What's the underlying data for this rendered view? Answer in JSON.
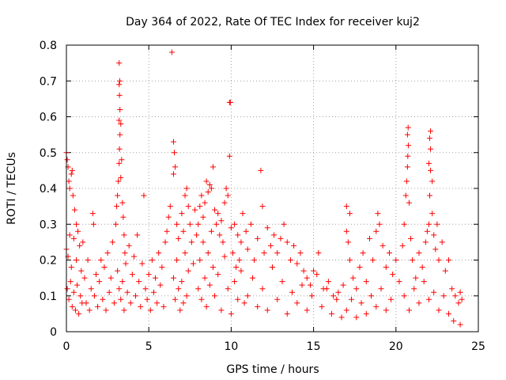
{
  "chart_data": {
    "type": "scatter",
    "title": "Day 364 of 2022, Rate Of TEC Index for receiver kuj2",
    "xlabel": "GPS time / hours",
    "ylabel": "ROTI / TECUs",
    "xlim": [
      0,
      25
    ],
    "ylim": [
      0,
      0.8
    ],
    "grid": true,
    "marker": "+",
    "color": "#ff0000",
    "x_ticks": [
      0,
      5,
      10,
      15,
      20,
      25
    ],
    "x_tick_labels": [
      "0",
      "5",
      "10",
      "15",
      "20",
      "25"
    ],
    "y_ticks": [
      0,
      0.1,
      0.2,
      0.3,
      0.4,
      0.5,
      0.6,
      0.7,
      0.8
    ],
    "y_tick_labels": [
      "0",
      "0.1",
      "0.2",
      "0.3",
      "0.4",
      "0.5",
      "0.6",
      "0.7",
      "0.8"
    ],
    "series": [
      {
        "name": "ROTI",
        "points": [
          [
            0.0,
            0.5
          ],
          [
            0.05,
            0.48
          ],
          [
            0.1,
            0.46
          ],
          [
            0.15,
            0.42
          ],
          [
            0.2,
            0.4
          ],
          [
            0.3,
            0.44
          ],
          [
            0.35,
            0.45
          ],
          [
            0.4,
            0.38
          ],
          [
            0.5,
            0.34
          ],
          [
            0.6,
            0.3
          ],
          [
            0.0,
            0.23
          ],
          [
            0.1,
            0.21
          ],
          [
            0.2,
            0.27
          ],
          [
            0.3,
            0.18
          ],
          [
            0.45,
            0.26
          ],
          [
            0.6,
            0.2
          ],
          [
            0.7,
            0.28
          ],
          [
            0.8,
            0.24
          ],
          [
            0.9,
            0.17
          ],
          [
            1.0,
            0.25
          ],
          [
            0.05,
            0.12
          ],
          [
            0.15,
            0.09
          ],
          [
            0.25,
            0.14
          ],
          [
            0.35,
            0.07
          ],
          [
            0.45,
            0.11
          ],
          [
            0.55,
            0.06
          ],
          [
            0.65,
            0.13
          ],
          [
            0.75,
            0.05
          ],
          [
            0.85,
            0.1
          ],
          [
            0.95,
            0.08
          ],
          [
            1.1,
            0.15
          ],
          [
            1.2,
            0.08
          ],
          [
            1.3,
            0.2
          ],
          [
            1.4,
            0.06
          ],
          [
            1.5,
            0.12
          ],
          [
            1.6,
            0.33
          ],
          [
            1.65,
            0.3
          ],
          [
            1.7,
            0.1
          ],
          [
            1.8,
            0.16
          ],
          [
            1.9,
            0.07
          ],
          [
            2.0,
            0.14
          ],
          [
            2.1,
            0.2
          ],
          [
            2.2,
            0.09
          ],
          [
            2.3,
            0.18
          ],
          [
            2.4,
            0.06
          ],
          [
            2.5,
            0.22
          ],
          [
            2.6,
            0.11
          ],
          [
            2.7,
            0.15
          ],
          [
            2.8,
            0.25
          ],
          [
            2.9,
            0.08
          ],
          [
            3.0,
            0.3
          ],
          [
            3.05,
            0.35
          ],
          [
            3.1,
            0.38
          ],
          [
            3.15,
            0.42
          ],
          [
            3.2,
            0.47
          ],
          [
            3.22,
            0.51
          ],
          [
            3.25,
            0.55
          ],
          [
            3.2,
            0.59
          ],
          [
            3.25,
            0.62
          ],
          [
            3.22,
            0.66
          ],
          [
            3.2,
            0.69
          ],
          [
            3.24,
            0.7
          ],
          [
            3.2,
            0.75
          ],
          [
            3.3,
            0.58
          ],
          [
            3.35,
            0.48
          ],
          [
            3.3,
            0.43
          ],
          [
            3.4,
            0.36
          ],
          [
            3.45,
            0.32
          ],
          [
            3.5,
            0.27
          ],
          [
            3.55,
            0.22
          ],
          [
            3.1,
            0.17
          ],
          [
            3.2,
            0.12
          ],
          [
            3.3,
            0.09
          ],
          [
            3.4,
            0.14
          ],
          [
            3.5,
            0.06
          ],
          [
            3.6,
            0.19
          ],
          [
            3.7,
            0.11
          ],
          [
            3.8,
            0.24
          ],
          [
            3.9,
            0.08
          ],
          [
            4.0,
            0.16
          ],
          [
            4.1,
            0.21
          ],
          [
            4.2,
            0.1
          ],
          [
            4.3,
            0.27
          ],
          [
            4.4,
            0.14
          ],
          [
            4.5,
            0.07
          ],
          [
            4.6,
            0.19
          ],
          [
            4.7,
            0.38
          ],
          [
            4.8,
            0.12
          ],
          [
            4.9,
            0.09
          ],
          [
            5.0,
            0.16
          ],
          [
            5.1,
            0.06
          ],
          [
            5.2,
            0.2
          ],
          [
            5.3,
            0.11
          ],
          [
            5.4,
            0.15
          ],
          [
            5.5,
            0.08
          ],
          [
            5.6,
            0.22
          ],
          [
            5.7,
            0.13
          ],
          [
            5.8,
            0.18
          ],
          [
            5.9,
            0.07
          ],
          [
            6.0,
            0.25
          ],
          [
            6.1,
            0.28
          ],
          [
            6.2,
            0.32
          ],
          [
            6.3,
            0.35
          ],
          [
            6.4,
            0.78
          ],
          [
            6.5,
            0.53
          ],
          [
            6.55,
            0.5
          ],
          [
            6.5,
            0.44
          ],
          [
            6.6,
            0.46
          ],
          [
            6.7,
            0.3
          ],
          [
            6.8,
            0.26
          ],
          [
            6.5,
            0.15
          ],
          [
            6.6,
            0.09
          ],
          [
            6.7,
            0.2
          ],
          [
            6.8,
            0.12
          ],
          [
            6.9,
            0.06
          ],
          [
            7.0,
            0.33
          ],
          [
            7.1,
            0.28
          ],
          [
            7.2,
            0.38
          ],
          [
            7.3,
            0.4
          ],
          [
            7.4,
            0.35
          ],
          [
            7.0,
            0.14
          ],
          [
            7.1,
            0.08
          ],
          [
            7.2,
            0.22
          ],
          [
            7.3,
            0.1
          ],
          [
            7.4,
            0.17
          ],
          [
            7.5,
            0.3
          ],
          [
            7.6,
            0.25
          ],
          [
            7.7,
            0.19
          ],
          [
            7.8,
            0.34
          ],
          [
            7.9,
            0.27
          ],
          [
            8.0,
            0.3
          ],
          [
            8.1,
            0.35
          ],
          [
            8.2,
            0.38
          ],
          [
            8.3,
            0.32
          ],
          [
            8.4,
            0.36
          ],
          [
            8.5,
            0.42
          ],
          [
            8.6,
            0.39
          ],
          [
            8.7,
            0.41
          ],
          [
            8.8,
            0.4
          ],
          [
            8.9,
            0.46
          ],
          [
            8.0,
            0.12
          ],
          [
            8.1,
            0.2
          ],
          [
            8.2,
            0.09
          ],
          [
            8.3,
            0.25
          ],
          [
            8.4,
            0.15
          ],
          [
            8.5,
            0.07
          ],
          [
            8.6,
            0.22
          ],
          [
            8.7,
            0.13
          ],
          [
            8.8,
            0.28
          ],
          [
            8.9,
            0.18
          ],
          [
            9.0,
            0.34
          ],
          [
            9.1,
            0.3
          ],
          [
            9.2,
            0.33
          ],
          [
            9.3,
            0.27
          ],
          [
            9.4,
            0.31
          ],
          [
            9.5,
            0.25
          ],
          [
            9.6,
            0.36
          ],
          [
            9.7,
            0.4
          ],
          [
            9.8,
            0.38
          ],
          [
            9.9,
            0.64
          ],
          [
            9.95,
            0.64
          ],
          [
            9.9,
            0.49
          ],
          [
            10.0,
            0.29
          ],
          [
            10.1,
            0.22
          ],
          [
            10.2,
            0.3
          ],
          [
            10.3,
            0.18
          ],
          [
            10.4,
            0.27
          ],
          [
            10.5,
            0.2
          ],
          [
            10.6,
            0.25
          ],
          [
            10.7,
            0.33
          ],
          [
            9.0,
            0.1
          ],
          [
            9.2,
            0.16
          ],
          [
            9.4,
            0.06
          ],
          [
            9.6,
            0.21
          ],
          [
            9.8,
            0.12
          ],
          [
            10.0,
            0.05
          ],
          [
            10.2,
            0.14
          ],
          [
            10.4,
            0.09
          ],
          [
            10.6,
            0.17
          ],
          [
            10.8,
            0.08
          ],
          [
            10.9,
            0.28
          ],
          [
            11.0,
            0.23
          ],
          [
            11.2,
            0.3
          ],
          [
            11.4,
            0.2
          ],
          [
            11.6,
            0.26
          ],
          [
            11.8,
            0.45
          ],
          [
            11.9,
            0.35
          ],
          [
            12.0,
            0.22
          ],
          [
            12.2,
            0.29
          ],
          [
            12.4,
            0.24
          ],
          [
            11.0,
            0.1
          ],
          [
            11.3,
            0.15
          ],
          [
            11.6,
            0.07
          ],
          [
            11.9,
            0.12
          ],
          [
            12.2,
            0.06
          ],
          [
            12.5,
            0.18
          ],
          [
            12.8,
            0.09
          ],
          [
            13.1,
            0.14
          ],
          [
            13.4,
            0.05
          ],
          [
            13.7,
            0.11
          ],
          [
            12.6,
            0.27
          ],
          [
            12.8,
            0.22
          ],
          [
            13.0,
            0.26
          ],
          [
            13.2,
            0.3
          ],
          [
            13.4,
            0.25
          ],
          [
            13.6,
            0.2
          ],
          [
            13.8,
            0.24
          ],
          [
            14.0,
            0.19
          ],
          [
            14.2,
            0.22
          ],
          [
            14.4,
            0.17
          ],
          [
            14.0,
            0.08
          ],
          [
            14.3,
            0.13
          ],
          [
            14.6,
            0.06
          ],
          [
            14.9,
            0.1
          ],
          [
            15.2,
            0.16
          ],
          [
            15.5,
            0.07
          ],
          [
            15.8,
            0.12
          ],
          [
            16.1,
            0.05
          ],
          [
            16.4,
            0.09
          ],
          [
            16.7,
            0.04
          ],
          [
            14.6,
            0.15
          ],
          [
            14.8,
            0.13
          ],
          [
            15.0,
            0.17
          ],
          [
            15.3,
            0.22
          ],
          [
            15.6,
            0.12
          ],
          [
            15.9,
            0.14
          ],
          [
            16.2,
            0.1
          ],
          [
            16.5,
            0.11
          ],
          [
            16.8,
            0.13
          ],
          [
            17.0,
            0.28
          ],
          [
            17.0,
            0.35
          ],
          [
            17.2,
            0.33
          ],
          [
            17.1,
            0.25
          ],
          [
            17.2,
            0.2
          ],
          [
            17.4,
            0.15
          ],
          [
            17.6,
            0.12
          ],
          [
            17.8,
            0.18
          ],
          [
            18.0,
            0.22
          ],
          [
            18.2,
            0.14
          ],
          [
            18.4,
            0.26
          ],
          [
            17.0,
            0.06
          ],
          [
            17.3,
            0.09
          ],
          [
            17.6,
            0.04
          ],
          [
            17.9,
            0.08
          ],
          [
            18.2,
            0.05
          ],
          [
            18.5,
            0.1
          ],
          [
            18.8,
            0.07
          ],
          [
            19.1,
            0.12
          ],
          [
            19.4,
            0.06
          ],
          [
            19.7,
            0.09
          ],
          [
            18.6,
            0.2
          ],
          [
            18.8,
            0.28
          ],
          [
            18.9,
            0.33
          ],
          [
            19.0,
            0.3
          ],
          [
            19.2,
            0.24
          ],
          [
            19.4,
            0.18
          ],
          [
            19.6,
            0.22
          ],
          [
            19.8,
            0.16
          ],
          [
            20.0,
            0.2
          ],
          [
            20.2,
            0.14
          ],
          [
            20.4,
            0.24
          ],
          [
            20.5,
            0.3
          ],
          [
            20.6,
            0.38
          ],
          [
            20.65,
            0.42
          ],
          [
            20.7,
            0.46
          ],
          [
            20.72,
            0.49
          ],
          [
            20.75,
            0.52
          ],
          [
            20.7,
            0.55
          ],
          [
            20.74,
            0.57
          ],
          [
            20.8,
            0.36
          ],
          [
            20.9,
            0.26
          ],
          [
            21.0,
            0.2
          ],
          [
            21.2,
            0.15
          ],
          [
            21.4,
            0.22
          ],
          [
            21.6,
            0.18
          ],
          [
            21.8,
            0.25
          ],
          [
            21.9,
            0.28
          ],
          [
            22.0,
            0.3
          ],
          [
            22.05,
            0.38
          ],
          [
            22.1,
            0.45
          ],
          [
            22.0,
            0.47
          ],
          [
            22.1,
            0.51
          ],
          [
            22.05,
            0.54
          ],
          [
            22.1,
            0.56
          ],
          [
            22.2,
            0.42
          ],
          [
            22.2,
            0.33
          ],
          [
            22.3,
            0.27
          ],
          [
            22.4,
            0.23
          ],
          [
            22.5,
            0.3
          ],
          [
            22.6,
            0.2
          ],
          [
            20.5,
            0.1
          ],
          [
            20.8,
            0.06
          ],
          [
            21.1,
            0.12
          ],
          [
            21.4,
            0.08
          ],
          [
            21.7,
            0.14
          ],
          [
            22.0,
            0.09
          ],
          [
            22.3,
            0.11
          ],
          [
            22.6,
            0.06
          ],
          [
            22.9,
            0.1
          ],
          [
            23.2,
            0.05
          ],
          [
            22.8,
            0.25
          ],
          [
            23.0,
            0.17
          ],
          [
            23.2,
            0.2
          ],
          [
            23.4,
            0.12
          ],
          [
            23.6,
            0.1
          ],
          [
            23.8,
            0.08
          ],
          [
            23.9,
            0.11
          ],
          [
            24.0,
            0.09
          ],
          [
            23.5,
            0.03
          ],
          [
            23.9,
            0.02
          ]
        ]
      }
    ]
  }
}
